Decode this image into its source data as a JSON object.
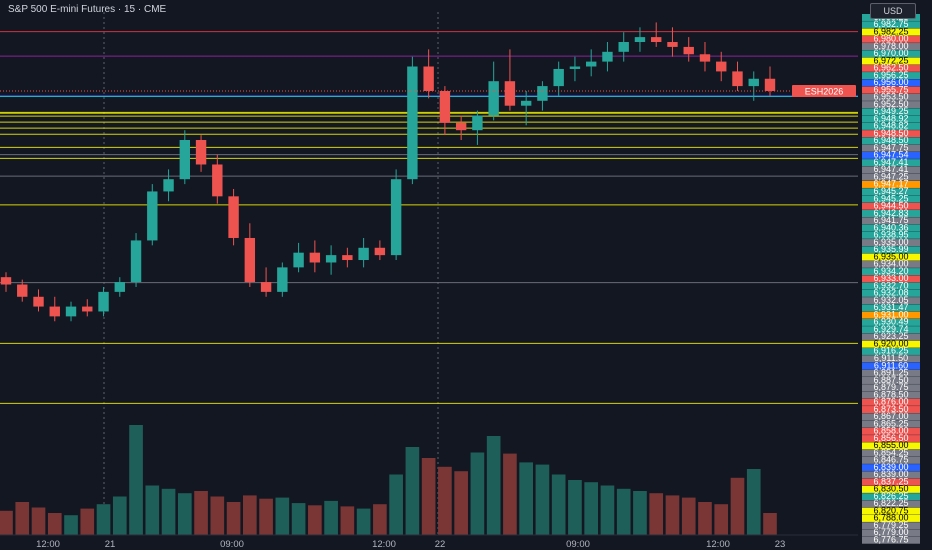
{
  "header": {
    "title": "S&P 500 E-mini Futures · 15 · CME",
    "currency_button": "USD"
  },
  "chart_data": {
    "type": "candlestick",
    "symbol": "ESH2026",
    "interval": "15",
    "ylim": [
      6776.75,
      6990.25
    ],
    "x_ticks": [
      "12:00",
      "21",
      "09:00",
      "12:00",
      "22",
      "09:00",
      "12:00",
      "23"
    ],
    "current_price_label": "ESH2026",
    "colors": {
      "up": "#26a69a",
      "down": "#ef5350",
      "up_vol": "#1f5f5a",
      "down_vol": "#7a3535",
      "bg": "#131722"
    },
    "candles": [
      [
        6882,
        6884,
        6876,
        6879
      ],
      [
        6879,
        6881,
        6872,
        6874
      ],
      [
        6874,
        6877,
        6868,
        6870
      ],
      [
        6870,
        6874,
        6864,
        6866
      ],
      [
        6866,
        6872,
        6864,
        6870
      ],
      [
        6870,
        6873,
        6866,
        6868
      ],
      [
        6868,
        6878,
        6866,
        6876
      ],
      [
        6876,
        6882,
        6874,
        6880
      ],
      [
        6880,
        6900,
        6878,
        6897
      ],
      [
        6897,
        6920,
        6895,
        6917
      ],
      [
        6917,
        6926,
        6913,
        6922
      ],
      [
        6922,
        6942,
        6920,
        6938
      ],
      [
        6938,
        6940,
        6925,
        6928
      ],
      [
        6928,
        6932,
        6912,
        6915
      ],
      [
        6915,
        6918,
        6895,
        6898
      ],
      [
        6898,
        6904,
        6878,
        6880
      ],
      [
        6880,
        6886,
        6874,
        6876
      ],
      [
        6876,
        6888,
        6874,
        6886
      ],
      [
        6886,
        6896,
        6884,
        6892
      ],
      [
        6892,
        6897,
        6884,
        6888
      ],
      [
        6888,
        6895,
        6883,
        6891
      ],
      [
        6891,
        6894,
        6886,
        6889
      ],
      [
        6889,
        6898,
        6886,
        6894
      ],
      [
        6894,
        6897,
        6889,
        6891
      ],
      [
        6891,
        6926,
        6889,
        6922
      ],
      [
        6922,
        6972,
        6920,
        6968
      ],
      [
        6968,
        6975,
        6955,
        6958
      ],
      [
        6958,
        6960,
        6940,
        6945
      ],
      [
        6945,
        6948,
        6938,
        6942
      ],
      [
        6942,
        6950,
        6936,
        6948
      ],
      [
        6948,
        6970,
        6946,
        6962
      ],
      [
        6962,
        6975,
        6950,
        6952
      ],
      [
        6952,
        6958,
        6944,
        6954
      ],
      [
        6954,
        6962,
        6950,
        6960
      ],
      [
        6960,
        6970,
        6956,
        6967
      ],
      [
        6967,
        6972,
        6962,
        6968
      ],
      [
        6968,
        6975,
        6964,
        6970
      ],
      [
        6970,
        6978,
        6966,
        6974
      ],
      [
        6974,
        6982,
        6970,
        6978
      ],
      [
        6978,
        6984,
        6974,
        6980
      ],
      [
        6980,
        6986,
        6976,
        6978
      ],
      [
        6978,
        6984,
        6972,
        6976
      ],
      [
        6976,
        6980,
        6970,
        6973
      ],
      [
        6973,
        6978,
        6966,
        6970
      ],
      [
        6970,
        6974,
        6962,
        6966
      ],
      [
        6966,
        6970,
        6958,
        6960
      ],
      [
        6960,
        6966,
        6954,
        6963
      ],
      [
        6963,
        6968,
        6956,
        6958
      ]
    ],
    "volumes": [
      22,
      30,
      25,
      20,
      18,
      24,
      28,
      35,
      100,
      45,
      42,
      38,
      40,
      35,
      30,
      36,
      33,
      34,
      29,
      27,
      31,
      26,
      24,
      28,
      55,
      80,
      70,
      62,
      58,
      75,
      90,
      74,
      66,
      64,
      55,
      50,
      48,
      45,
      42,
      40,
      38,
      36,
      34,
      30,
      28,
      52,
      60,
      20
    ],
    "price_labels": [
      {
        "text": "6,990.25",
        "color": "#26a69a"
      },
      {
        "text": "6,982.75",
        "color": "#26a69a"
      },
      {
        "text": "6,982.25",
        "color": "#f7f700"
      },
      {
        "text": "6,980.00",
        "color": "#ef5350"
      },
      {
        "text": "6,978.00",
        "color": "#787b86"
      },
      {
        "text": "6,970.00",
        "color": "#26a69a"
      },
      {
        "text": "6,972.25",
        "color": "#f7f700"
      },
      {
        "text": "6,962.50",
        "color": "#ef5350"
      },
      {
        "text": "6,956.25",
        "color": "#26a69a"
      },
      {
        "text": "6,956.00",
        "color": "#2962ff"
      },
      {
        "text": "6,955.75",
        "color": "#ef5350"
      },
      {
        "text": "6,953.50",
        "color": "#787b86"
      },
      {
        "text": "6,952.50",
        "color": "#787b86"
      },
      {
        "text": "6,949.25",
        "color": "#26a69a"
      },
      {
        "text": "6,948.92",
        "color": "#26a69a"
      },
      {
        "text": "6,948.82",
        "color": "#26a69a"
      },
      {
        "text": "6,948.50",
        "color": "#ef5350"
      },
      {
        "text": "6,948.50",
        "color": "#26a69a"
      },
      {
        "text": "6,947.75",
        "color": "#787b86"
      },
      {
        "text": "6,947.54",
        "color": "#2962ff"
      },
      {
        "text": "6,947.41",
        "color": "#26a69a"
      },
      {
        "text": "6,947.41",
        "color": "#787b86"
      },
      {
        "text": "6,947.25",
        "color": "#787b86"
      },
      {
        "text": "6,947.17",
        "color": "#ff9800"
      },
      {
        "text": "6,945.27",
        "color": "#26a69a"
      },
      {
        "text": "6,945.25",
        "color": "#26a69a"
      },
      {
        "text": "6,944.50",
        "color": "#ef5350"
      },
      {
        "text": "6,942.83",
        "color": "#26a69a"
      },
      {
        "text": "6,941.75",
        "color": "#787b86"
      },
      {
        "text": "6,940.36",
        "color": "#26a69a"
      },
      {
        "text": "6,938.95",
        "color": "#26a69a"
      },
      {
        "text": "6,935.00",
        "color": "#787b86"
      },
      {
        "text": "6,935.99",
        "color": "#26a69a"
      },
      {
        "text": "6,935.00",
        "color": "#f7f700"
      },
      {
        "text": "6,934.00",
        "color": "#787b86"
      },
      {
        "text": "6,934.20",
        "color": "#26a69a"
      },
      {
        "text": "6,933.00",
        "color": "#ef5350"
      },
      {
        "text": "6,932.70",
        "color": "#26a69a"
      },
      {
        "text": "6,932.08",
        "color": "#26a69a"
      },
      {
        "text": "6,932.05",
        "color": "#787b86"
      },
      {
        "text": "6,931.47",
        "color": "#26a69a"
      },
      {
        "text": "6,931.00",
        "color": "#ff9800"
      },
      {
        "text": "6,930.49",
        "color": "#26a69a"
      },
      {
        "text": "6,929.74",
        "color": "#26a69a"
      },
      {
        "text": "6,923.25",
        "color": "#787b86"
      },
      {
        "text": "6,920.00",
        "color": "#f7f700"
      },
      {
        "text": "6,916.25",
        "color": "#26a69a"
      },
      {
        "text": "6,911.50",
        "color": "#787b86"
      },
      {
        "text": "6,911.60",
        "color": "#2962ff"
      },
      {
        "text": "6,891.25",
        "color": "#787b86"
      },
      {
        "text": "6,887.50",
        "color": "#787b86"
      },
      {
        "text": "6,879.75",
        "color": "#787b86"
      },
      {
        "text": "6,878.50",
        "color": "#787b86"
      },
      {
        "text": "6,876.00",
        "color": "#ef5350"
      },
      {
        "text": "6,873.50",
        "color": "#ef5350"
      },
      {
        "text": "6,867.00",
        "color": "#787b86"
      },
      {
        "text": "6,865.25",
        "color": "#787b86"
      },
      {
        "text": "6,858.00",
        "color": "#ef5350"
      },
      {
        "text": "6,856.50",
        "color": "#ef5350"
      },
      {
        "text": "6,855.00",
        "color": "#f7f700"
      },
      {
        "text": "6,854.25",
        "color": "#787b86"
      },
      {
        "text": "6,846.75",
        "color": "#787b86"
      },
      {
        "text": "6,839.00",
        "color": "#2962ff"
      },
      {
        "text": "6,839.00",
        "color": "#787b86"
      },
      {
        "text": "6,837.25",
        "color": "#ef5350"
      },
      {
        "text": "6,830.50",
        "color": "#f7f700"
      },
      {
        "text": "6,826.25",
        "color": "#26a69a"
      },
      {
        "text": "6,822.25",
        "color": "#787b86"
      },
      {
        "text": "6,820.75",
        "color": "#f7f700"
      },
      {
        "text": "6,788.00",
        "color": "#f7f700"
      },
      {
        "text": "6,779.25",
        "color": "#787b86"
      },
      {
        "text": "6,779.00",
        "color": "#787b86"
      },
      {
        "text": "6,776.75",
        "color": "#787b86"
      }
    ],
    "level_lines": [
      {
        "price": 6982.25,
        "color": "#f23645"
      },
      {
        "price": 6972.25,
        "color": "#9c27b0"
      },
      {
        "price": 6956.0,
        "color": "#2962ff"
      },
      {
        "price": 6955.75,
        "color": "#26c6da"
      },
      {
        "price": 6949.25,
        "color": "#f7f700"
      },
      {
        "price": 6948.92,
        "color": "#f7f700"
      },
      {
        "price": 6947.75,
        "color": "#f7f700"
      },
      {
        "price": 6945.27,
        "color": "#f7f700"
      },
      {
        "price": 6942.83,
        "color": "#f7f700"
      },
      {
        "price": 6940.36,
        "color": "#f7f700"
      },
      {
        "price": 6935.0,
        "color": "#f7f700"
      },
      {
        "price": 6932.05,
        "color": "#787b86"
      },
      {
        "price": 6930.49,
        "color": "#f7f700"
      },
      {
        "price": 6923.25,
        "color": "#787b86"
      },
      {
        "price": 6911.5,
        "color": "#f7f700"
      },
      {
        "price": 6879.75,
        "color": "#787b86"
      },
      {
        "price": 6855.0,
        "color": "#f7f700"
      },
      {
        "price": 6830.5,
        "color": "#f7f700"
      }
    ]
  }
}
